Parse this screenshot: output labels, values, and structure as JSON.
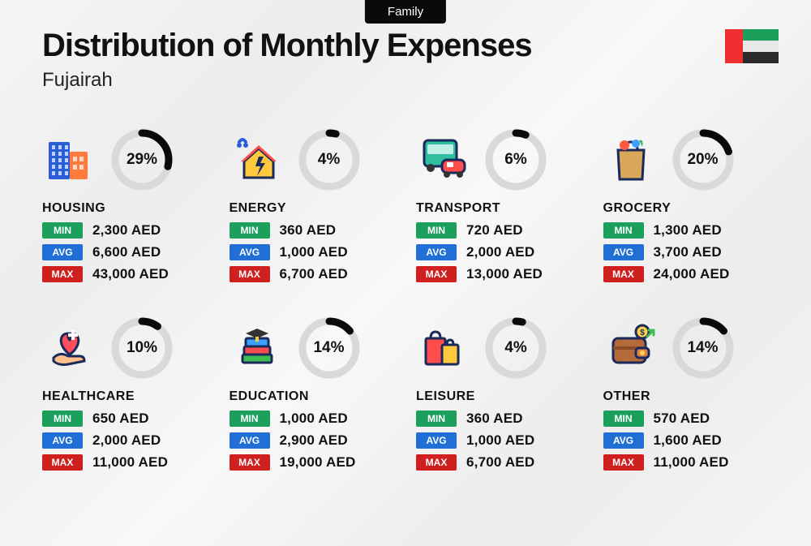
{
  "header": {
    "tag": "Family",
    "title": "Distribution of Monthly Expenses",
    "subtitle": "Fujairah"
  },
  "currency": "AED",
  "colors": {
    "min_badge": "#1aa05a",
    "avg_badge": "#1f6fd6",
    "max_badge": "#d01f1f",
    "donut_track": "#d9d9d9",
    "donut_fill": "#0a0a0a",
    "flag": {
      "red": "#ef2f2f",
      "green": "#1aa05a",
      "white": "#e8e8e8",
      "black": "#2a2a2a"
    }
  },
  "labels": {
    "min": "MIN",
    "avg": "AVG",
    "max": "MAX"
  },
  "donut": {
    "radius": 33,
    "stroke_width": 9
  },
  "categories": [
    {
      "key": "housing",
      "name": "HOUSING",
      "percent": 29,
      "min": "2,300",
      "avg": "6,600",
      "max": "43,000",
      "icon": "buildings"
    },
    {
      "key": "energy",
      "name": "ENERGY",
      "percent": 4,
      "min": "360",
      "avg": "1,000",
      "max": "6,700",
      "icon": "energy-house"
    },
    {
      "key": "transport",
      "name": "TRANSPORT",
      "percent": 6,
      "min": "720",
      "avg": "2,000",
      "max": "13,000",
      "icon": "bus-car"
    },
    {
      "key": "grocery",
      "name": "GROCERY",
      "percent": 20,
      "min": "1,300",
      "avg": "3,700",
      "max": "24,000",
      "icon": "grocery-bag"
    },
    {
      "key": "healthcare",
      "name": "HEALTHCARE",
      "percent": 10,
      "min": "650",
      "avg": "2,000",
      "max": "11,000",
      "icon": "heart-hand"
    },
    {
      "key": "education",
      "name": "EDUCATION",
      "percent": 14,
      "min": "1,000",
      "avg": "2,900",
      "max": "19,000",
      "icon": "grad-books"
    },
    {
      "key": "leisure",
      "name": "LEISURE",
      "percent": 4,
      "min": "360",
      "avg": "1,000",
      "max": "6,700",
      "icon": "shopping-bags"
    },
    {
      "key": "other",
      "name": "OTHER",
      "percent": 14,
      "min": "570",
      "avg": "1,600",
      "max": "11,000",
      "icon": "wallet"
    }
  ]
}
